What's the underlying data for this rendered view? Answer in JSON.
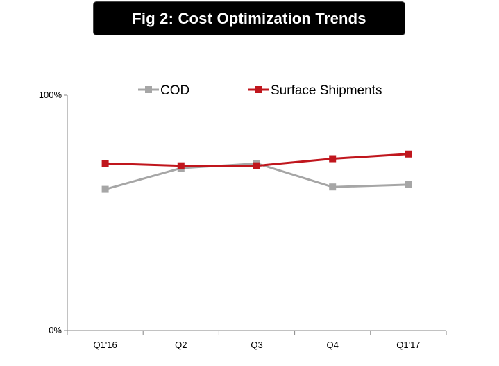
{
  "title": "Fig 2: Cost Optimization Trends",
  "chart_data": {
    "type": "line",
    "categories": [
      "Q1'16",
      "Q2",
      "Q3",
      "Q4",
      "Q1'17"
    ],
    "y_tick_labels": [
      "100%",
      "0%"
    ],
    "ylim": [
      0,
      100
    ],
    "grid": false,
    "legend_position": "top",
    "series": [
      {
        "name": "COD",
        "color": "#a6a6a6",
        "values": [
          60,
          69,
          71,
          61,
          62
        ]
      },
      {
        "name": "Surface Shipments",
        "color": "#c0161d",
        "values": [
          71,
          70,
          70,
          73,
          75
        ]
      }
    ]
  }
}
